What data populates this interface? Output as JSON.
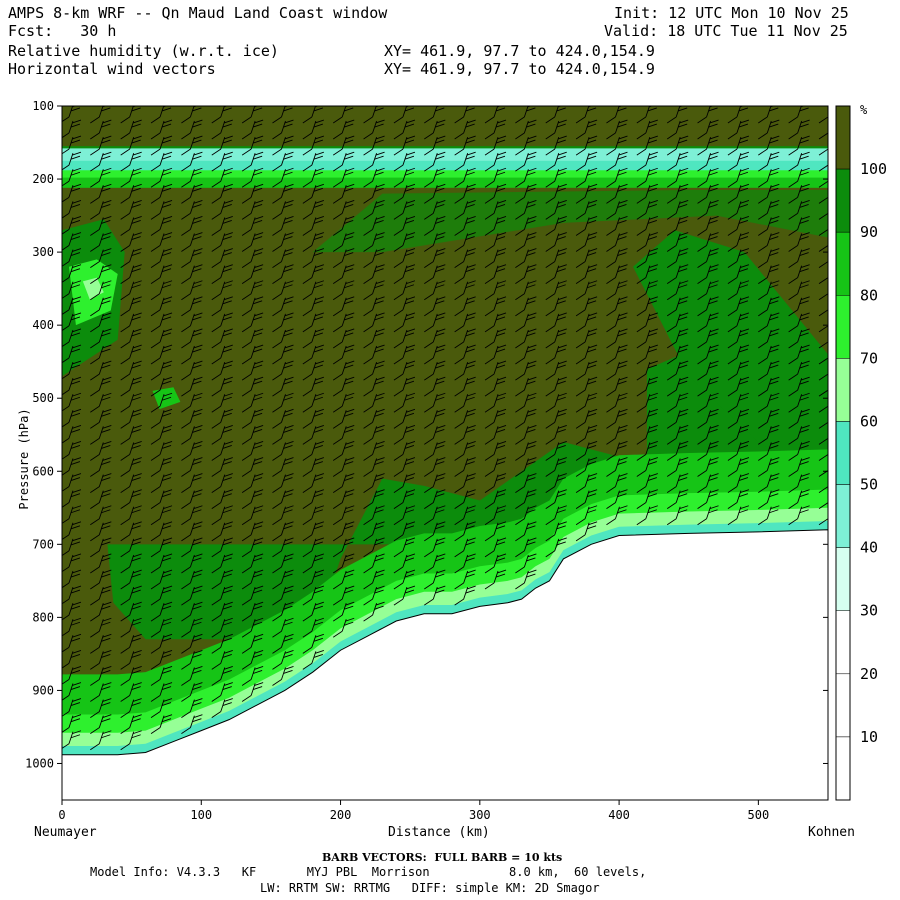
{
  "header": {
    "title": "AMPS 8-km WRF -- Qn Maud Land Coast window",
    "fcst": "Fcst:   30 h",
    "init": "Init: 12 UTC Mon 10 Nov 25",
    "valid": "Valid: 18 UTC Tue 11 Nov 25",
    "field1": "Relative humidity (w.r.t. ice)",
    "field2": "Horizontal wind vectors",
    "xy1": "XY= 461.9, 97.7 to 424.0,154.9",
    "xy2": "XY= 461.9, 97.7 to 424.0,154.9"
  },
  "chart_data": {
    "type": "heatmap",
    "title": "Relative humidity (w.r.t. ice) cross-section with horizontal wind vectors",
    "xlabel": "Distance (km)",
    "ylabel": "Pressure (hPa)",
    "xlim": [
      0,
      550
    ],
    "ylim": [
      1050,
      100
    ],
    "x_ticks": [
      0,
      100,
      200,
      300,
      400,
      500
    ],
    "y_ticks": [
      100,
      200,
      300,
      400,
      500,
      600,
      700,
      800,
      900,
      1000
    ],
    "left_endpoint": "Neumayer",
    "right_endpoint": "Kohnen",
    "colorbar": {
      "unit": "%",
      "levels": [
        10,
        20,
        30,
        40,
        50,
        60,
        70,
        80,
        90,
        100
      ],
      "colors": [
        "#ffffff",
        "#ffffff",
        "#ffffff",
        "#d6fff0",
        "#7ef0d6",
        "#4fe6c0",
        "#96ff96",
        "#2ef02e",
        "#16c416",
        "#0c8c0c",
        "#4a5a0c"
      ]
    },
    "terrain_surface_hPa": {
      "x": [
        0,
        20,
        40,
        60,
        80,
        100,
        120,
        140,
        160,
        180,
        200,
        220,
        240,
        250,
        260,
        280,
        300,
        320,
        330,
        340,
        350,
        360,
        380,
        400,
        450,
        500,
        550
      ],
      "p": [
        988,
        988,
        988,
        985,
        970,
        955,
        940,
        920,
        900,
        875,
        845,
        825,
        805,
        800,
        795,
        795,
        785,
        780,
        775,
        760,
        750,
        720,
        700,
        688,
        685,
        683,
        680
      ]
    },
    "annotations": [
      "BARB VECTORS:  FULL BARB = 10 kts"
    ]
  },
  "footer": {
    "barb_note": "BARB VECTORS:  FULL BARB = 10 kts",
    "model_line1": "Model Info: V4.3.3   KF       MYJ PBL  Morrison           8.0 km,  60 levels,",
    "model_line2": "LW: RRTM SW: RRTMG   DIFF: simple KM: 2D Smagor"
  },
  "colors": {
    "olive": "#4a5a0c",
    "dark_green": "#0c8c0c",
    "mid_green": "#16c416",
    "green": "#2ef02e",
    "light_green": "#96ff96",
    "teal": "#4fe6c0",
    "light_teal": "#7ef0d6",
    "pale": "#d6fff0"
  }
}
